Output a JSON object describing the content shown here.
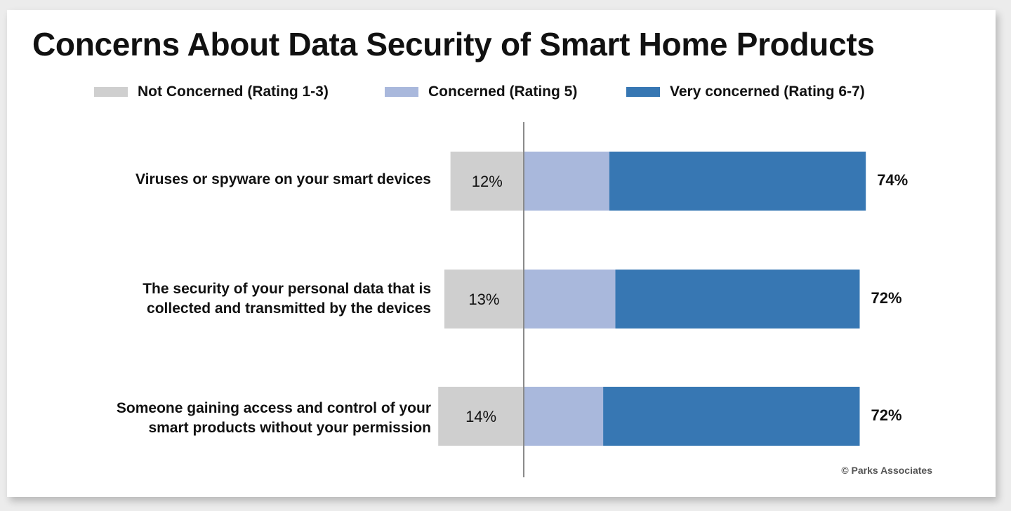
{
  "title": "Concerns About Data Security of Smart Home Products",
  "source": "© Parks Associates",
  "colors": {
    "not_concerned": "#cfcfcf",
    "concerned": "#a9b8dc",
    "very_concerned": "#3777b3",
    "divider": "#8a8a8a"
  },
  "legend": [
    {
      "label": "Not Concerned (Rating 1-3)",
      "color": "#cfcfcf"
    },
    {
      "label": "Concerned (Rating 5)",
      "color": "#a9b8dc"
    },
    {
      "label": "Very concerned (Rating 6-7)",
      "color": "#3777b3"
    }
  ],
  "rows": [
    {
      "label_lines": [
        "Viruses or spyware on your smart devices"
      ]
    },
    {
      "label_lines": [
        "The security of your personal data that is",
        "collected and transmitted by the devices"
      ]
    },
    {
      "label_lines": [
        "Someone gaining access and control of your",
        "smart products without your permission"
      ]
    }
  ],
  "chart_data": {
    "type": "bar",
    "orientation": "horizontal",
    "stacked": true,
    "diverging": true,
    "categories": [
      "Viruses or spyware on your smart devices",
      "The security of your personal data that is collected and transmitted by the devices",
      "Someone gaining access and control of your smart products without your permission"
    ],
    "series": [
      {
        "name": "Not Concerned (Rating 1-3)",
        "values": [
          12,
          13,
          14
        ],
        "labels": [
          "12%",
          "13%",
          "14%"
        ]
      },
      {
        "name": "Concerned (Rating 5)",
        "values": [
          14,
          15,
          13
        ]
      },
      {
        "name": "Very concerned (Rating 6-7)",
        "values": [
          42,
          40,
          42
        ]
      }
    ],
    "total_concerned_labels": [
      "74%",
      "72%",
      "72%"
    ],
    "title": "Concerns About Data Security of Smart Home Products",
    "xlabel": "",
    "ylabel": "",
    "grid": false,
    "legend_position": "top"
  }
}
